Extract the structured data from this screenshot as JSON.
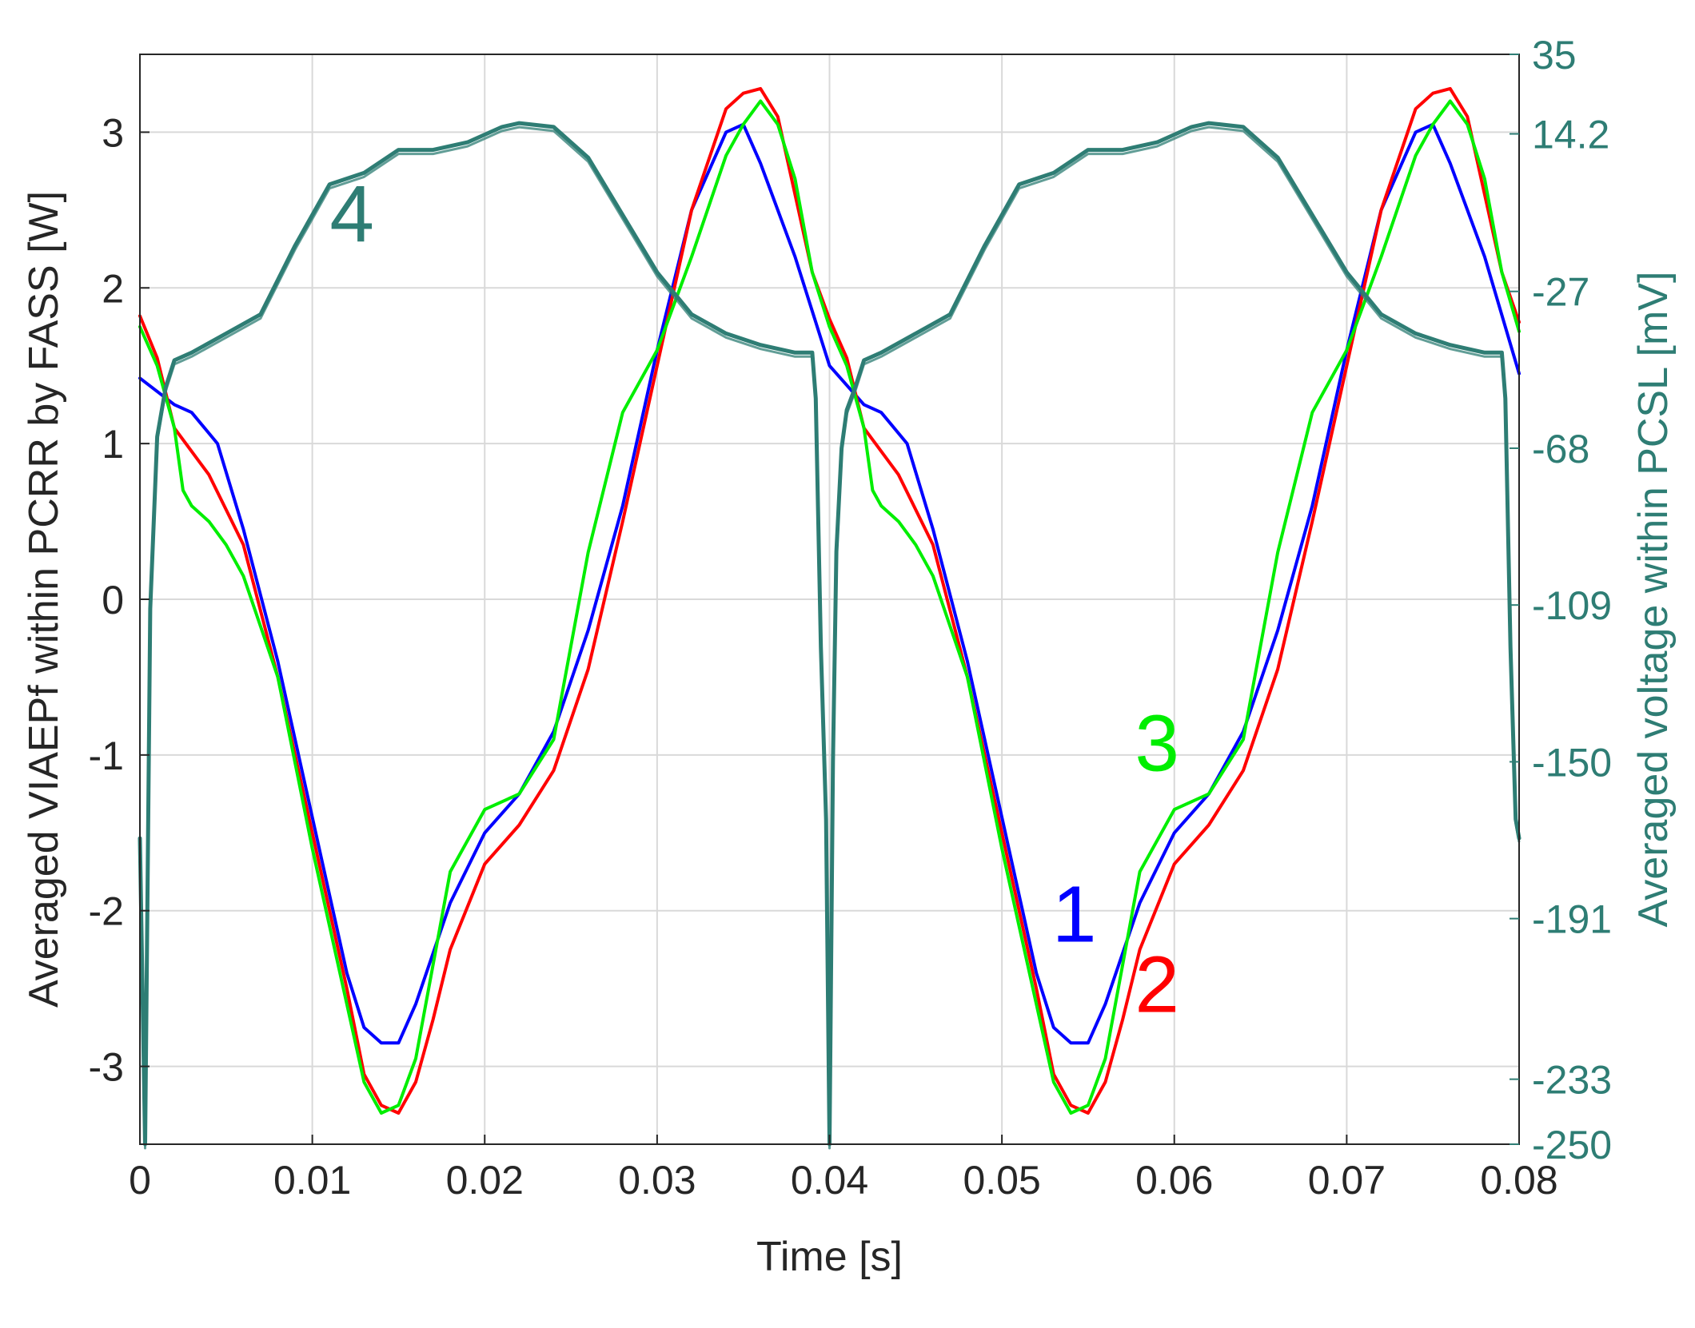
{
  "chart_data": {
    "type": "line",
    "xlabel": "Time [s]",
    "ylabel": "Averaged VIAEPf within PCRR by FASS [W]",
    "y2label": "Averaged voltage within PCSL [mV]",
    "xlim": [
      0,
      0.08
    ],
    "ylim": [
      -3.5,
      3.5
    ],
    "y2lim": [
      -250,
      35
    ],
    "xticks": [
      0,
      0.01,
      0.02,
      0.03,
      0.04,
      0.05,
      0.06,
      0.07,
      0.08
    ],
    "xtick_labels": [
      "0",
      "0.01",
      "0.02",
      "0.03",
      "0.04",
      "0.05",
      "0.06",
      "0.07",
      "0.08"
    ],
    "yticks": [
      -3,
      -2,
      -1,
      0,
      1,
      2,
      3
    ],
    "ytick_labels": [
      "-3",
      "-2",
      "-1",
      "0",
      "1",
      "2",
      "3"
    ],
    "y2ticks": [
      -250,
      -233,
      -191,
      -150,
      -109,
      -68,
      -27,
      14.2,
      35
    ],
    "y2tick_labels": [
      "-250",
      "-233",
      "-191",
      "-150",
      "-109",
      "-68",
      "-27",
      "14.2",
      "35"
    ],
    "grid": true,
    "colors": {
      "series1": "#0000ff",
      "series2": "#ff0000",
      "series3": "#00ee00",
      "series4": "#2e7d74",
      "grid": "#d9d9d9",
      "axis": "#262626"
    },
    "series": [
      {
        "label": "1",
        "color": "#0000ff",
        "axis": "left",
        "x": [
          0,
          0.002,
          0.003,
          0.0045,
          0.006,
          0.008,
          0.01,
          0.012,
          0.013,
          0.014,
          0.015,
          0.016,
          0.018,
          0.02,
          0.022,
          0.024,
          0.026,
          0.028,
          0.03,
          0.032,
          0.034,
          0.035,
          0.036,
          0.038,
          0.04,
          0.042,
          0.043,
          0.0445,
          0.046,
          0.048,
          0.05,
          0.052,
          0.053,
          0.054,
          0.055,
          0.056,
          0.058,
          0.06,
          0.062,
          0.064,
          0.066,
          0.068,
          0.07,
          0.072,
          0.074,
          0.075,
          0.076,
          0.078,
          0.08
        ],
        "y": [
          1.42,
          1.25,
          1.2,
          1.0,
          0.45,
          -0.4,
          -1.4,
          -2.4,
          -2.75,
          -2.85,
          -2.85,
          -2.6,
          -1.95,
          -1.5,
          -1.25,
          -0.85,
          -0.2,
          0.6,
          1.6,
          2.5,
          3.0,
          3.05,
          2.8,
          2.2,
          1.5,
          1.25,
          1.2,
          1.0,
          0.45,
          -0.4,
          -1.4,
          -2.4,
          -2.75,
          -2.85,
          -2.85,
          -2.6,
          -1.95,
          -1.5,
          -1.25,
          -0.85,
          -0.2,
          0.6,
          1.6,
          2.5,
          3.0,
          3.05,
          2.8,
          2.2,
          1.45
        ]
      },
      {
        "label": "2",
        "color": "#ff0000",
        "axis": "left",
        "x": [
          0,
          0.001,
          0.002,
          0.004,
          0.006,
          0.008,
          0.01,
          0.012,
          0.013,
          0.014,
          0.015,
          0.016,
          0.017,
          0.018,
          0.02,
          0.022,
          0.024,
          0.026,
          0.028,
          0.03,
          0.032,
          0.034,
          0.035,
          0.036,
          0.037,
          0.038,
          0.039,
          0.04,
          0.041,
          0.042,
          0.044,
          0.046,
          0.048,
          0.05,
          0.052,
          0.053,
          0.054,
          0.055,
          0.056,
          0.057,
          0.058,
          0.06,
          0.062,
          0.064,
          0.066,
          0.068,
          0.07,
          0.072,
          0.074,
          0.075,
          0.076,
          0.077,
          0.078,
          0.079,
          0.08
        ],
        "y": [
          1.82,
          1.55,
          1.1,
          0.8,
          0.35,
          -0.5,
          -1.5,
          -2.5,
          -3.05,
          -3.25,
          -3.3,
          -3.1,
          -2.7,
          -2.25,
          -1.7,
          -1.45,
          -1.1,
          -0.45,
          0.5,
          1.5,
          2.5,
          3.15,
          3.25,
          3.28,
          3.1,
          2.6,
          2.1,
          1.8,
          1.55,
          1.1,
          0.8,
          0.35,
          -0.5,
          -1.5,
          -2.5,
          -3.05,
          -3.25,
          -3.3,
          -3.1,
          -2.7,
          -2.25,
          -1.7,
          -1.45,
          -1.1,
          -0.45,
          0.5,
          1.5,
          2.5,
          3.15,
          3.25,
          3.28,
          3.1,
          2.6,
          2.1,
          1.78
        ]
      },
      {
        "label": "3",
        "color": "#00ee00",
        "axis": "left",
        "x": [
          0,
          0.001,
          0.002,
          0.0025,
          0.003,
          0.004,
          0.005,
          0.006,
          0.008,
          0.01,
          0.012,
          0.013,
          0.014,
          0.015,
          0.016,
          0.018,
          0.02,
          0.022,
          0.024,
          0.026,
          0.028,
          0.03,
          0.032,
          0.034,
          0.035,
          0.036,
          0.037,
          0.038,
          0.039,
          0.04,
          0.041,
          0.042,
          0.0425,
          0.043,
          0.044,
          0.045,
          0.046,
          0.048,
          0.05,
          0.052,
          0.053,
          0.054,
          0.055,
          0.056,
          0.058,
          0.06,
          0.062,
          0.064,
          0.066,
          0.068,
          0.07,
          0.072,
          0.074,
          0.075,
          0.076,
          0.077,
          0.078,
          0.079,
          0.08
        ],
        "y": [
          1.75,
          1.5,
          1.1,
          0.7,
          0.6,
          0.5,
          0.35,
          0.15,
          -0.5,
          -1.6,
          -2.6,
          -3.1,
          -3.3,
          -3.25,
          -2.95,
          -1.75,
          -1.35,
          -1.25,
          -0.9,
          0.3,
          1.2,
          1.6,
          2.2,
          2.85,
          3.05,
          3.2,
          3.05,
          2.7,
          2.1,
          1.75,
          1.5,
          1.1,
          0.7,
          0.6,
          0.5,
          0.35,
          0.15,
          -0.5,
          -1.6,
          -2.6,
          -3.1,
          -3.3,
          -3.25,
          -2.95,
          -1.75,
          -1.35,
          -1.25,
          -0.9,
          0.3,
          1.2,
          1.6,
          2.2,
          2.85,
          3.05,
          3.2,
          3.05,
          2.7,
          2.1,
          1.72
        ]
      },
      {
        "label": "4",
        "color": "#2e7d74",
        "axis": "right",
        "x": [
          0,
          0.0003,
          0.0006,
          0.001,
          0.0015,
          0.002,
          0.003,
          0.005,
          0.007,
          0.009,
          0.011,
          0.013,
          0.015,
          0.017,
          0.019,
          0.021,
          0.022,
          0.024,
          0.026,
          0.028,
          0.03,
          0.032,
          0.034,
          0.036,
          0.038,
          0.039,
          0.0392,
          0.0395,
          0.0398,
          0.04,
          0.0402,
          0.0404,
          0.0407,
          0.041,
          0.0415,
          0.042,
          0.043,
          0.045,
          0.047,
          0.049,
          0.051,
          0.053,
          0.055,
          0.057,
          0.059,
          0.061,
          0.062,
          0.064,
          0.066,
          0.068,
          0.07,
          0.072,
          0.074,
          0.076,
          0.078,
          0.079,
          0.0792,
          0.0795,
          0.0798,
          0.08
        ],
        "y": [
          -170,
          -250,
          -110,
          -65,
          -52,
          -45,
          -43,
          -38,
          -33,
          -15,
          1,
          4,
          10,
          10,
          12,
          16,
          17,
          16,
          8,
          -7,
          -22,
          -33,
          -38,
          -41,
          -43,
          -43,
          -55,
          -120,
          -165,
          -250,
          -150,
          -95,
          -68,
          -58,
          -52,
          -45,
          -43,
          -38,
          -33,
          -15,
          1,
          4,
          10,
          10,
          12,
          16,
          17,
          16,
          8,
          -7,
          -22,
          -33,
          -38,
          -41,
          -43,
          -43,
          -55,
          -120,
          -165,
          -170
        ]
      }
    ],
    "annotations": [
      {
        "text": "1",
        "x": 0.0542,
        "y": -2.2,
        "color": "#0000ff"
      },
      {
        "text": "2",
        "x": 0.059,
        "y": -2.65,
        "color": "#ff0000"
      },
      {
        "text": "3",
        "x": 0.059,
        "y": -1.1,
        "color": "#00ee00"
      },
      {
        "text": "4",
        "x": 0.0123,
        "y": 2.3,
        "color": "#2e7d74"
      }
    ]
  }
}
